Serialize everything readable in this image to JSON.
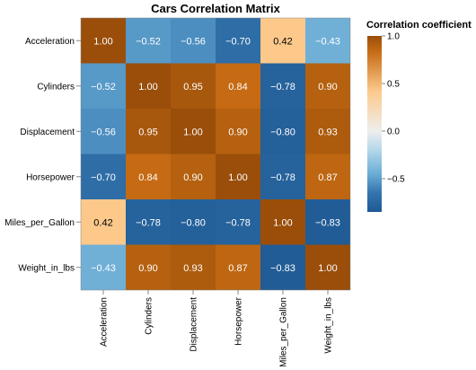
{
  "chart_data": {
    "type": "heatmap",
    "title": "Cars Correlation Matrix",
    "variables": [
      "Acceleration",
      "Cylinders",
      "Displacement",
      "Horsepower",
      "Miles_per_Gallon",
      "Weight_in_lbs"
    ],
    "matrix": [
      [
        1.0,
        -0.52,
        -0.56,
        -0.7,
        0.42,
        -0.43
      ],
      [
        -0.52,
        1.0,
        0.95,
        0.84,
        -0.78,
        0.9
      ],
      [
        -0.56,
        0.95,
        1.0,
        0.9,
        -0.8,
        0.93
      ],
      [
        -0.7,
        0.84,
        0.9,
        1.0,
        -0.78,
        0.87
      ],
      [
        0.42,
        -0.78,
        -0.8,
        -0.78,
        1.0,
        -0.83
      ],
      [
        -0.43,
        0.9,
        0.93,
        0.87,
        -0.83,
        1.0
      ]
    ],
    "cell_labels": [
      [
        "1.00",
        "−0.52",
        "−0.56",
        "−0.70",
        "0.42",
        "−0.43"
      ],
      [
        "−0.52",
        "1.00",
        "0.95",
        "0.84",
        "−0.78",
        "0.90"
      ],
      [
        "−0.56",
        "0.95",
        "1.00",
        "0.90",
        "−0.80",
        "0.93"
      ],
      [
        "−0.70",
        "0.84",
        "0.90",
        "1.00",
        "−0.78",
        "0.87"
      ],
      [
        "0.42",
        "−0.78",
        "−0.80",
        "−0.78",
        "1.00",
        "−0.83"
      ],
      [
        "−0.43",
        "0.90",
        "0.93",
        "0.87",
        "−0.83",
        "1.00"
      ]
    ],
    "color_scale": {
      "scheme": "diverging blue-orange",
      "domain": [
        -1,
        1
      ],
      "stops": [
        {
          "value": -0.85,
          "color": "#1f5993"
        },
        {
          "value": -0.65,
          "color": "#3474ae"
        },
        {
          "value": -0.45,
          "color": "#6aadd5"
        },
        {
          "value": -0.2,
          "color": "#b4d7ea"
        },
        {
          "value": 0.0,
          "color": "#eeeeee"
        },
        {
          "value": 0.42,
          "color": "#fcc98b"
        },
        {
          "value": 0.84,
          "color": "#c66a13"
        },
        {
          "value": 0.9,
          "color": "#b5610f"
        },
        {
          "value": 1.0,
          "color": "#9a4e0a"
        }
      ]
    },
    "legend": {
      "title": "Correlation coefficient",
      "position": "right",
      "ticks": [
        1.0,
        0.5,
        0.0,
        -0.5
      ],
      "tick_labels": [
        "1.0",
        "0.5",
        "0.0",
        "−0.5"
      ],
      "range": [
        -0.85,
        1.0
      ]
    },
    "text_colors": {
      "light": "#ffffff",
      "dark": "#000000"
    }
  }
}
